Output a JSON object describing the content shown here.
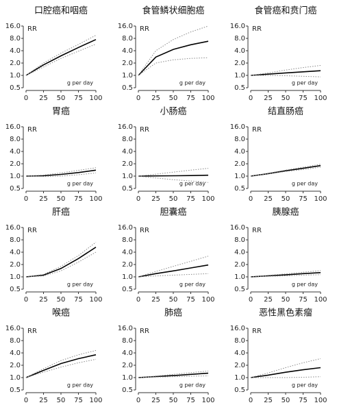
{
  "chart_data": [
    {
      "type": "line",
      "title": "口腔癌和咽癌",
      "ylabel": "RR",
      "xlabel": "g per day",
      "x": [
        0,
        25,
        50,
        75,
        100
      ],
      "series": [
        {
          "color": "#000000",
          "style": "solid",
          "values": [
            1,
            1.8,
            3.0,
            4.8,
            7.5
          ]
        },
        {
          "color": "#888888",
          "style": "dotted",
          "values": [
            1,
            1.6,
            2.6,
            3.9,
            5.8
          ]
        },
        {
          "color": "#888888",
          "style": "dotted",
          "values": [
            1,
            2.0,
            3.5,
            5.7,
            9.5
          ]
        }
      ],
      "xlim": [
        0,
        100
      ],
      "ylim": [
        0.5,
        16
      ],
      "xticks": [
        0,
        25,
        50,
        75,
        100
      ],
      "yticks": [
        0.5,
        {
          "value": 1,
          "label": "1.0"
        },
        {
          "value": 2,
          "label": "2.0"
        },
        {
          "value": 4,
          "label": "4.0"
        },
        {
          "value": 8,
          "label": "8.0"
        },
        {
          "value": 16,
          "label": "16.0"
        }
      ],
      "log_y": true
    },
    {
      "type": "line",
      "title": "食管鳞状细胞癌",
      "ylabel": "RR",
      "xlabel": "g per day",
      "x": [
        0,
        25,
        50,
        75,
        100
      ],
      "series": [
        {
          "color": "#000000",
          "style": "solid",
          "values": [
            1,
            2.8,
            4.3,
            5.6,
            6.8
          ]
        },
        {
          "color": "#888888",
          "style": "dotted",
          "values": [
            1,
            2.0,
            2.4,
            2.6,
            2.7
          ]
        },
        {
          "color": "#888888",
          "style": "dotted",
          "values": [
            1,
            4.0,
            7.5,
            11.5,
            16
          ]
        }
      ],
      "xlim": [
        0,
        100
      ],
      "ylim": [
        0.5,
        16
      ],
      "xticks": [
        0,
        25,
        50,
        75,
        100
      ],
      "yticks": [
        0.5,
        {
          "value": 1,
          "label": "1.0"
        },
        {
          "value": 2,
          "label": "2.0"
        },
        {
          "value": 4,
          "label": "4.0"
        },
        {
          "value": 8,
          "label": "8.0"
        },
        {
          "value": 16,
          "label": "16.0"
        }
      ],
      "log_y": true
    },
    {
      "type": "line",
      "title": "食管癌和贲门癌",
      "ylabel": "RR",
      "xlabel": "g per day",
      "x": [
        0,
        25,
        50,
        75,
        100
      ],
      "series": [
        {
          "color": "#000000",
          "style": "solid",
          "values": [
            1,
            1.07,
            1.15,
            1.22,
            1.3
          ]
        },
        {
          "color": "#888888",
          "style": "dotted",
          "values": [
            1,
            1.0,
            0.98,
            0.95,
            0.92
          ]
        },
        {
          "color": "#888888",
          "style": "dotted",
          "values": [
            1,
            1.15,
            1.35,
            1.55,
            1.75
          ]
        }
      ],
      "xlim": [
        0,
        100
      ],
      "ylim": [
        0.5,
        16
      ],
      "xticks": [
        0,
        25,
        50,
        75,
        100
      ],
      "yticks": [
        0.5,
        {
          "value": 1,
          "label": "1.0"
        },
        {
          "value": 2,
          "label": "2.0"
        },
        {
          "value": 4,
          "label": "4.0"
        },
        {
          "value": 8,
          "label": "8.0"
        },
        {
          "value": 16,
          "label": "16.0"
        }
      ],
      "log_y": true
    },
    {
      "type": "line",
      "title": "胃癌",
      "ylabel": "RR",
      "xlabel": "g per day",
      "x": [
        0,
        25,
        50,
        75,
        100
      ],
      "series": [
        {
          "color": "#000000",
          "style": "solid",
          "values": [
            1,
            1.02,
            1.1,
            1.22,
            1.4
          ]
        },
        {
          "color": "#888888",
          "style": "dotted",
          "values": [
            1,
            0.98,
            1.0,
            1.08,
            1.2
          ]
        },
        {
          "color": "#888888",
          "style": "dotted",
          "values": [
            1,
            1.06,
            1.2,
            1.38,
            1.6
          ]
        }
      ],
      "xlim": [
        0,
        100
      ],
      "ylim": [
        0.5,
        16
      ],
      "xticks": [
        0,
        25,
        50,
        75,
        100
      ],
      "yticks": [
        0.5,
        {
          "value": 1,
          "label": "1.0"
        },
        {
          "value": 2,
          "label": "2.0"
        },
        {
          "value": 4,
          "label": "4.0"
        },
        {
          "value": 8,
          "label": "8.0"
        },
        {
          "value": 16,
          "label": "16.0"
        }
      ],
      "log_y": true
    },
    {
      "type": "line",
      "title": "小肠癌",
      "ylabel": "RR",
      "xlabel": "g per day",
      "x": [
        0,
        25,
        50,
        75,
        100
      ],
      "series": [
        {
          "color": "#000000",
          "style": "solid",
          "values": [
            1,
            1.01,
            1.02,
            1.03,
            1.05
          ]
        },
        {
          "color": "#888888",
          "style": "dotted",
          "values": [
            1,
            0.9,
            0.82,
            0.76,
            0.7
          ]
        },
        {
          "color": "#888888",
          "style": "dotted",
          "values": [
            1,
            1.12,
            1.25,
            1.4,
            1.55
          ]
        }
      ],
      "xlim": [
        0,
        100
      ],
      "ylim": [
        0.5,
        16
      ],
      "xticks": [
        0,
        25,
        50,
        75,
        100
      ],
      "yticks": [
        0.5,
        {
          "value": 1,
          "label": "1.0"
        },
        {
          "value": 2,
          "label": "2.0"
        },
        {
          "value": 4,
          "label": "4.0"
        },
        {
          "value": 8,
          "label": "8.0"
        },
        {
          "value": 16,
          "label": "16.0"
        }
      ],
      "log_y": true
    },
    {
      "type": "line",
      "title": "结直肠癌",
      "ylabel": "RR",
      "xlabel": "g per day",
      "x": [
        0,
        25,
        50,
        75,
        100
      ],
      "series": [
        {
          "color": "#000000",
          "style": "solid",
          "values": [
            1,
            1.15,
            1.35,
            1.55,
            1.8
          ]
        },
        {
          "color": "#888888",
          "style": "dotted",
          "values": [
            1,
            1.13,
            1.3,
            1.45,
            1.65
          ]
        },
        {
          "color": "#888888",
          "style": "dotted",
          "values": [
            1,
            1.18,
            1.4,
            1.65,
            1.95
          ]
        }
      ],
      "xlim": [
        0,
        100
      ],
      "ylim": [
        0.5,
        16
      ],
      "xticks": [
        0,
        25,
        50,
        75,
        100
      ],
      "yticks": [
        0.5,
        {
          "value": 1,
          "label": "1.0"
        },
        {
          "value": 2,
          "label": "2.0"
        },
        {
          "value": 4,
          "label": "4.0"
        },
        {
          "value": 8,
          "label": "8.0"
        },
        {
          "value": 16,
          "label": "16.0"
        }
      ],
      "log_y": true
    },
    {
      "type": "line",
      "title": "肝癌",
      "ylabel": "RR",
      "xlabel": "g per day",
      "x": [
        0,
        25,
        50,
        75,
        100
      ],
      "series": [
        {
          "color": "#000000",
          "style": "solid",
          "values": [
            1,
            1.1,
            1.6,
            2.8,
            5.3
          ]
        },
        {
          "color": "#888888",
          "style": "dotted",
          "values": [
            1,
            1.05,
            1.4,
            2.3,
            4.0
          ]
        },
        {
          "color": "#888888",
          "style": "dotted",
          "values": [
            1,
            1.15,
            1.8,
            3.3,
            7.0
          ]
        }
      ],
      "xlim": [
        0,
        100
      ],
      "ylim": [
        0.5,
        16
      ],
      "xticks": [
        0,
        25,
        50,
        75,
        100
      ],
      "yticks": [
        0.5,
        {
          "value": 1,
          "label": "1.0"
        },
        {
          "value": 2,
          "label": "2.0"
        },
        {
          "value": 4,
          "label": "4.0"
        },
        {
          "value": 8,
          "label": "8.0"
        },
        {
          "value": 16,
          "label": "16.0"
        }
      ],
      "log_y": true
    },
    {
      "type": "line",
      "title": "胆囊癌",
      "ylabel": "RR",
      "xlabel": "g per day",
      "x": [
        0,
        25,
        50,
        75,
        100
      ],
      "series": [
        {
          "color": "#000000",
          "style": "solid",
          "values": [
            1,
            1.2,
            1.4,
            1.65,
            1.95
          ]
        },
        {
          "color": "#888888",
          "style": "dotted",
          "values": [
            1,
            1.05,
            1.1,
            1.15,
            1.2
          ]
        },
        {
          "color": "#888888",
          "style": "dotted",
          "values": [
            1,
            1.35,
            1.8,
            2.4,
            3.2
          ]
        }
      ],
      "xlim": [
        0,
        100
      ],
      "ylim": [
        0.5,
        16
      ],
      "xticks": [
        0,
        25,
        50,
        75,
        100
      ],
      "yticks": [
        0.5,
        {
          "value": 1,
          "label": "1.0"
        },
        {
          "value": 2,
          "label": "2.0"
        },
        {
          "value": 4,
          "label": "4.0"
        },
        {
          "value": 8,
          "label": "8.0"
        },
        {
          "value": 16,
          "label": "16.0"
        }
      ],
      "log_y": true
    },
    {
      "type": "line",
      "title": "胰腺癌",
      "ylabel": "RR",
      "xlabel": "g per day",
      "x": [
        0,
        25,
        50,
        75,
        100
      ],
      "series": [
        {
          "color": "#000000",
          "style": "solid",
          "values": [
            1,
            1.06,
            1.12,
            1.2,
            1.27
          ]
        },
        {
          "color": "#888888",
          "style": "dotted",
          "values": [
            1,
            1.03,
            1.06,
            1.1,
            1.13
          ]
        },
        {
          "color": "#888888",
          "style": "dotted",
          "values": [
            1,
            1.09,
            1.18,
            1.3,
            1.42
          ]
        }
      ],
      "xlim": [
        0,
        100
      ],
      "ylim": [
        0.5,
        16
      ],
      "xticks": [
        0,
        25,
        50,
        75,
        100
      ],
      "yticks": [
        0.5,
        {
          "value": 1,
          "label": "1.0"
        },
        {
          "value": 2,
          "label": "2.0"
        },
        {
          "value": 4,
          "label": "4.0"
        },
        {
          "value": 8,
          "label": "8.0"
        },
        {
          "value": 16,
          "label": "16.0"
        }
      ],
      "log_y": true
    },
    {
      "type": "line",
      "title": "喉癌",
      "ylabel": "RR",
      "xlabel": "g per day",
      "x": [
        0,
        25,
        50,
        75,
        100
      ],
      "series": [
        {
          "color": "#000000",
          "style": "solid",
          "values": [
            1,
            1.5,
            2.2,
            2.9,
            3.6
          ]
        },
        {
          "color": "#888888",
          "style": "dotted",
          "values": [
            1,
            1.35,
            1.8,
            2.3,
            2.8
          ]
        },
        {
          "color": "#888888",
          "style": "dotted",
          "values": [
            1,
            1.65,
            2.6,
            3.6,
            4.6
          ]
        }
      ],
      "xlim": [
        0,
        100
      ],
      "ylim": [
        0.5,
        16
      ],
      "xticks": [
        0,
        25,
        50,
        75,
        100
      ],
      "yticks": [
        0.5,
        {
          "value": 1,
          "label": "1.0"
        },
        {
          "value": 2,
          "label": "2.0"
        },
        {
          "value": 4,
          "label": "4.0"
        },
        {
          "value": 8,
          "label": "8.0"
        },
        {
          "value": 16,
          "label": "16.0"
        }
      ],
      "log_y": true
    },
    {
      "type": "line",
      "title": "肺癌",
      "ylabel": "RR",
      "xlabel": "g per day",
      "x": [
        0,
        25,
        50,
        75,
        100
      ],
      "series": [
        {
          "color": "#000000",
          "style": "solid",
          "values": [
            1,
            1.06,
            1.12,
            1.2,
            1.28
          ]
        },
        {
          "color": "#888888",
          "style": "dotted",
          "values": [
            1,
            1.03,
            1.05,
            1.08,
            1.1
          ]
        },
        {
          "color": "#888888",
          "style": "dotted",
          "values": [
            1,
            1.09,
            1.2,
            1.32,
            1.45
          ]
        }
      ],
      "xlim": [
        0,
        100
      ],
      "ylim": [
        0.5,
        16
      ],
      "xticks": [
        0,
        25,
        50,
        75,
        100
      ],
      "yticks": [
        0.5,
        {
          "value": 1,
          "label": "1.0"
        },
        {
          "value": 2,
          "label": "2.0"
        },
        {
          "value": 4,
          "label": "4.0"
        },
        {
          "value": 8,
          "label": "8.0"
        },
        {
          "value": 16,
          "label": "16.0"
        }
      ],
      "log_y": true
    },
    {
      "type": "line",
      "title": "恶性黑色素瘤",
      "ylabel": "RR",
      "xlabel": "g per day",
      "x": [
        0,
        25,
        50,
        75,
        100
      ],
      "series": [
        {
          "color": "#000000",
          "style": "solid",
          "values": [
            1,
            1.15,
            1.35,
            1.55,
            1.75
          ]
        },
        {
          "color": "#888888",
          "style": "dotted",
          "values": [
            1,
            1.0,
            1.0,
            1.02,
            1.05
          ]
        },
        {
          "color": "#888888",
          "style": "dotted",
          "values": [
            1,
            1.3,
            1.75,
            2.3,
            2.9
          ]
        }
      ],
      "xlim": [
        0,
        100
      ],
      "ylim": [
        0.5,
        16
      ],
      "xticks": [
        0,
        25,
        50,
        75,
        100
      ],
      "yticks": [
        0.5,
        {
          "value": 1,
          "label": "1.0"
        },
        {
          "value": 2,
          "label": "2.0"
        },
        {
          "value": 4,
          "label": "4.0"
        },
        {
          "value": 8,
          "label": "8.0"
        },
        {
          "value": 16,
          "label": "16.0"
        }
      ],
      "log_y": true
    }
  ]
}
